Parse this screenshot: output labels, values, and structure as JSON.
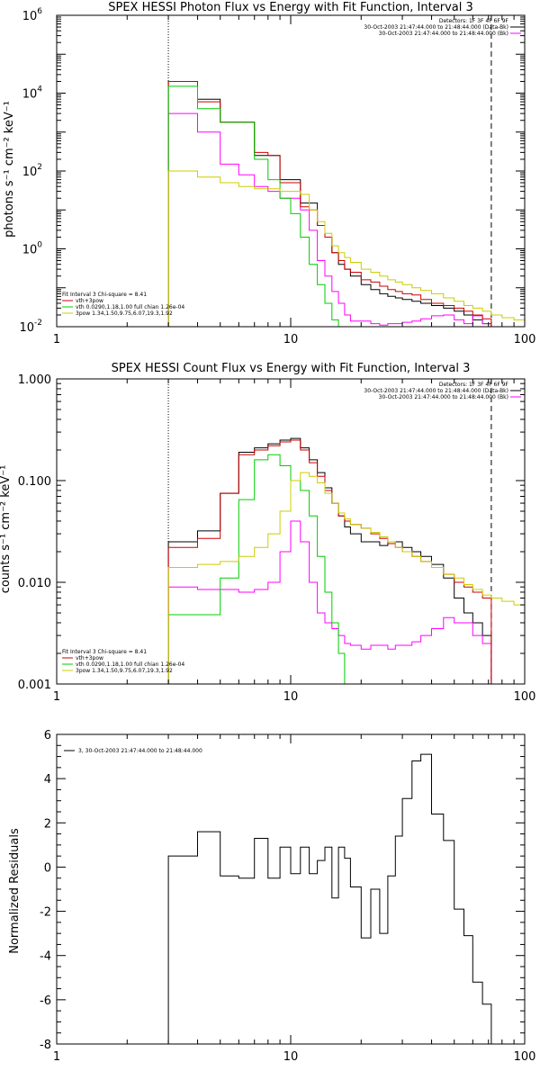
{
  "chart_data": [
    {
      "type": "line",
      "title": "SPEX HESSI Photon Flux vs Energy with Fit Function, Interval 3",
      "ylabel": "photons s⁻¹ cm⁻² keV⁻¹",
      "xscale": "log",
      "yscale": "log",
      "xlim": [
        1,
        100
      ],
      "ylim": [
        0.01,
        1000000
      ],
      "xticks": [
        {
          "v": 1,
          "label": "1"
        },
        {
          "v": 10,
          "label": "10"
        },
        {
          "v": 100,
          "label": "100"
        }
      ],
      "yticks": [
        {
          "v": 0.01,
          "label": "10",
          "exp": "-2"
        },
        {
          "v": 1,
          "label": "10",
          "exp": "0"
        },
        {
          "v": 100,
          "label": "10",
          "exp": "2"
        },
        {
          "v": 10000,
          "label": "10",
          "exp": "4"
        },
        {
          "v": 1000000,
          "label": "10",
          "exp": "6"
        }
      ],
      "legend_topright": {
        "header": "Detectors: 1F 3F 4F 6F 9F",
        "entries": [
          {
            "text": "30-Oct-2003 21:47:44.000 to 21:48:44.000 (Data-Bk)",
            "color": "#000000"
          },
          {
            "text": "30-Oct-2003 21:47:44.000 to 21:48:44.000 (Bk)",
            "color": "#ff00ff"
          }
        ]
      },
      "legend_bottomleft": {
        "header": "Fit Interval 3   Chi-square = 8.41",
        "entries": [
          {
            "text": "vth+3pow",
            "color": "#cc0000"
          },
          {
            "text": "vth 0.0290,1.18,1.00  full chian 1.26e-04",
            "color": "#00cc00"
          },
          {
            "text": "3pow 1.34,1.50,9.75,6.07,19.3,1.92",
            "color": "#cccc00"
          }
        ]
      },
      "vlines": [
        {
          "x": 3,
          "style": "dotted"
        },
        {
          "x": 72,
          "style": "dashed"
        }
      ],
      "bin_edges": [
        3,
        4,
        5,
        6,
        7,
        8,
        9,
        10,
        11,
        12,
        13,
        14,
        15,
        16,
        17,
        18,
        20,
        22,
        24,
        26,
        28,
        30,
        33,
        36,
        40,
        45,
        50,
        55,
        60,
        66,
        72,
        80,
        90,
        100
      ],
      "series": [
        {
          "name": "Data-Bk",
          "color": "#000000",
          "values": [
            20000,
            7000,
            1800,
            1800,
            250,
            250,
            60,
            60,
            15,
            15,
            4,
            2,
            0.8,
            0.4,
            0.3,
            0.2,
            0.12,
            0.09,
            0.07,
            0.06,
            0.055,
            0.05,
            0.045,
            0.04,
            0.035,
            0.03,
            0.025,
            0.02,
            0.015,
            0.012,
            null,
            null,
            null
          ]
        },
        {
          "name": "Bk",
          "color": "#ff00ff",
          "values": [
            3000,
            1000,
            150,
            80,
            40,
            30,
            20,
            20,
            10,
            3,
            0.5,
            0.2,
            0.08,
            0.04,
            0.02,
            0.014,
            0.014,
            0.012,
            0.011,
            0.012,
            0.012,
            0.013,
            0.014,
            0.016,
            0.019,
            0.02,
            0.015,
            0.012,
            0.019,
            0.012,
            null,
            null,
            null
          ]
        },
        {
          "name": "vth+3pow",
          "color": "#cc0000",
          "values": [
            20000,
            6000,
            1800,
            1800,
            300,
            250,
            50,
            50,
            12,
            10,
            4,
            2,
            0.8,
            0.5,
            0.3,
            0.25,
            0.16,
            0.14,
            0.11,
            0.09,
            0.08,
            0.07,
            0.065,
            0.05,
            0.04,
            0.035,
            0.03,
            0.025,
            0.02,
            0.016,
            null,
            null,
            null
          ]
        },
        {
          "name": "vth",
          "color": "#00cc00",
          "values": [
            15000,
            4000,
            1800,
            1800,
            200,
            60,
            20,
            8,
            2,
            0.4,
            0.12,
            0.04,
            0.015,
            0.01,
            null,
            null,
            null,
            null,
            null,
            null,
            null,
            null,
            null,
            null,
            null,
            null,
            null,
            null,
            null,
            null,
            null,
            null,
            null
          ]
        },
        {
          "name": "3pow",
          "color": "#cccc00",
          "values": [
            100,
            70,
            50,
            40,
            35,
            35,
            30,
            30,
            25,
            10,
            5,
            2.5,
            1.2,
            0.8,
            0.6,
            0.45,
            0.3,
            0.25,
            0.2,
            0.16,
            0.14,
            0.12,
            0.1,
            0.085,
            0.07,
            0.055,
            0.045,
            0.035,
            0.03,
            0.025,
            0.02,
            0.017,
            0.015
          ]
        }
      ]
    },
    {
      "type": "line",
      "title": "SPEX HESSI Count Flux vs Energy with Fit Function, Interval 3",
      "ylabel": "counts s⁻¹ cm⁻² keV⁻¹",
      "xscale": "log",
      "yscale": "log",
      "xlim": [
        1,
        100
      ],
      "ylim": [
        0.001,
        1
      ],
      "xticks": [
        {
          "v": 1,
          "label": "1"
        },
        {
          "v": 10,
          "label": "10"
        },
        {
          "v": 100,
          "label": "100"
        }
      ],
      "yticks": [
        {
          "v": 0.001,
          "label": "0.001"
        },
        {
          "v": 0.01,
          "label": "0.010"
        },
        {
          "v": 0.1,
          "label": "0.100"
        },
        {
          "v": 1,
          "label": "1.000"
        }
      ],
      "legend_topright": {
        "header": "Detectors: 1F 3F 4F 6F 9F",
        "entries": [
          {
            "text": "30-Oct-2003 21:47:44.000 to 21:48:44.000 (Data-Bk)",
            "color": "#000000"
          },
          {
            "text": "30-Oct-2003 21:47:44.000 to 21:48:44.000 (Bk)",
            "color": "#ff00ff"
          }
        ]
      },
      "legend_bottomleft": {
        "header": "Fit Interval 3   Chi-square = 8.41",
        "entries": [
          {
            "text": "vth+3pow",
            "color": "#cc0000"
          },
          {
            "text": "vth 0.0290,1.18,1.00  full chian 1.26e-04",
            "color": "#00cc00"
          },
          {
            "text": "3pow 1.34,1.50,9.75,6.07,19.3,1.92",
            "color": "#cccc00"
          }
        ]
      },
      "vlines": [
        {
          "x": 3,
          "style": "dotted"
        },
        {
          "x": 72,
          "style": "dashed"
        }
      ],
      "bin_edges": [
        3,
        4,
        5,
        6,
        7,
        8,
        9,
        10,
        11,
        12,
        13,
        14,
        15,
        16,
        17,
        18,
        20,
        22,
        24,
        26,
        28,
        30,
        33,
        36,
        40,
        45,
        50,
        55,
        60,
        66,
        72,
        80,
        90,
        100
      ],
      "series": [
        {
          "name": "Data-Bk",
          "color": "#000000",
          "values": [
            0.025,
            0.032,
            0.075,
            0.19,
            0.21,
            0.23,
            0.25,
            0.26,
            0.21,
            0.16,
            0.12,
            0.085,
            0.06,
            0.045,
            0.035,
            0.03,
            0.025,
            0.025,
            0.023,
            0.024,
            0.025,
            0.022,
            0.02,
            0.018,
            0.015,
            0.011,
            0.007,
            0.005,
            0.004,
            0.003,
            null,
            null,
            null
          ]
        },
        {
          "name": "Bk",
          "color": "#ff00ff",
          "values": [
            0.009,
            0.0085,
            0.0085,
            0.008,
            0.0085,
            0.01,
            0.02,
            0.04,
            0.025,
            0.01,
            0.005,
            0.004,
            0.0035,
            0.003,
            0.0025,
            0.0024,
            0.0022,
            0.0024,
            0.0024,
            0.0022,
            0.0024,
            0.0024,
            0.0026,
            0.003,
            0.0035,
            0.0045,
            0.004,
            0.004,
            0.003,
            0.0025,
            null,
            null,
            null
          ]
        },
        {
          "name": "vth+3pow",
          "color": "#cc0000",
          "values": [
            0.022,
            0.027,
            0.075,
            0.18,
            0.2,
            0.22,
            0.24,
            0.25,
            0.2,
            0.15,
            0.11,
            0.08,
            0.06,
            0.045,
            0.04,
            0.037,
            0.034,
            0.03,
            0.027,
            0.024,
            0.022,
            0.02,
            0.018,
            0.016,
            0.014,
            0.012,
            0.01,
            0.009,
            0.008,
            0.007,
            null,
            null,
            null
          ]
        },
        {
          "name": "vth",
          "color": "#00cc00",
          "values": [
            0.0048,
            0.0048,
            0.011,
            0.065,
            0.16,
            0.18,
            0.14,
            0.1,
            0.08,
            0.045,
            0.018,
            0.008,
            0.004,
            0.002,
            0.001,
            null,
            null,
            null,
            null,
            null,
            null,
            null,
            null,
            null,
            null,
            null,
            null,
            null,
            null,
            null,
            null,
            null,
            null
          ]
        },
        {
          "name": "3pow",
          "color": "#cccc00",
          "values": [
            0.014,
            0.015,
            0.016,
            0.018,
            0.022,
            0.03,
            0.05,
            0.1,
            0.12,
            0.11,
            0.095,
            0.075,
            0.06,
            0.048,
            0.042,
            0.037,
            0.034,
            0.031,
            0.028,
            0.025,
            0.022,
            0.02,
            0.018,
            0.016,
            0.014,
            0.012,
            0.011,
            0.0095,
            0.0085,
            0.0075,
            0.007,
            0.0065,
            0.006
          ]
        }
      ]
    },
    {
      "type": "line",
      "title": "",
      "ylabel": "Normalized Residuals",
      "xscale": "log",
      "yscale": "linear",
      "xlim": [
        1,
        100
      ],
      "ylim": [
        -8,
        6
      ],
      "xticks": [
        {
          "v": 1,
          "label": "1"
        },
        {
          "v": 10,
          "label": "10"
        },
        {
          "v": 100,
          "label": "100"
        }
      ],
      "yticks": [
        {
          "v": -8,
          "label": "-8"
        },
        {
          "v": -6,
          "label": "-6"
        },
        {
          "v": -4,
          "label": "-4"
        },
        {
          "v": -2,
          "label": "-2"
        },
        {
          "v": 0,
          "label": "0"
        },
        {
          "v": 2,
          "label": "2"
        },
        {
          "v": 4,
          "label": "4"
        },
        {
          "v": 6,
          "label": "6"
        }
      ],
      "legend_topleft": {
        "entries": [
          {
            "text": "3, 30-Oct-2003 21:47:44.000 to 21:48:44.000",
            "color": "#000000"
          }
        ]
      },
      "bin_edges": [
        3,
        4,
        5,
        6,
        7,
        8,
        9,
        10,
        11,
        12,
        13,
        14,
        15,
        16,
        17,
        18,
        20,
        22,
        24,
        26,
        28,
        30,
        33,
        36,
        40,
        45,
        50,
        55,
        60,
        66,
        72
      ],
      "series": [
        {
          "name": "residuals",
          "color": "#000000",
          "values": [
            0.5,
            1.6,
            -0.4,
            -0.5,
            1.3,
            -0.5,
            0.9,
            -0.3,
            0.9,
            -0.3,
            0.3,
            0.9,
            -1.4,
            0.9,
            0.4,
            -0.9,
            -3.2,
            -1.0,
            -3.0,
            -0.4,
            1.4,
            3.1,
            4.8,
            5.1,
            2.4,
            1.2,
            -1.9,
            -3.1,
            -5.2,
            -6.2
          ]
        }
      ]
    }
  ]
}
